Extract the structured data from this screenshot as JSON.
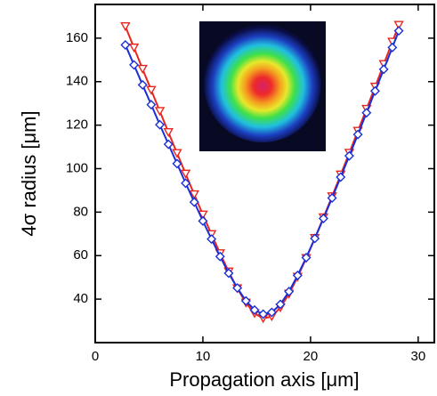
{
  "chart_data": {
    "type": "scatter",
    "x_label": "Propagation axis  [μm]",
    "y_label": "4σ radius  [μm]",
    "xlim": [
      0,
      31.5
    ],
    "ylim": [
      20,
      175.5
    ],
    "xticks": [
      0,
      10,
      20,
      30
    ],
    "yticks": [
      40,
      60,
      80,
      100,
      120,
      140,
      160
    ],
    "x": [
      2.8,
      3.6,
      4.4,
      5.2,
      6.0,
      6.8,
      7.6,
      8.4,
      9.2,
      10.0,
      10.8,
      11.6,
      12.4,
      13.2,
      14.0,
      14.8,
      15.6,
      16.4,
      17.2,
      18.0,
      18.8,
      19.6,
      20.4,
      21.2,
      22.0,
      22.8,
      23.6,
      24.4,
      25.2,
      26.0,
      26.8,
      27.6,
      28.2
    ],
    "series": [
      {
        "color": "#e8261f",
        "marker": "triangle-down",
        "values": [
          165.4,
          155.6,
          145.8,
          136.1,
          126.4,
          116.7,
          107.1,
          97.6,
          88.1,
          78.8,
          69.8,
          61.0,
          52.6,
          44.9,
          38.3,
          33.4,
          31.1,
          32.0,
          36.1,
          42.4,
          50.2,
          58.8,
          68.0,
          77.5,
          87.2,
          97.2,
          107.2,
          117.3,
          127.4,
          137.6,
          148.0,
          158.3,
          166.0
        ]
      },
      {
        "color": "#1a2fd6",
        "marker": "diamond",
        "values": [
          156.9,
          147.7,
          138.5,
          129.4,
          120.2,
          111.2,
          102.3,
          93.3,
          84.6,
          75.9,
          67.6,
          59.6,
          51.9,
          45.1,
          39.2,
          35.0,
          33.1,
          33.9,
          37.6,
          43.5,
          50.9,
          59.1,
          67.9,
          77.1,
          86.5,
          96.1,
          105.9,
          115.7,
          125.7,
          135.7,
          145.7,
          155.7,
          163.4
        ]
      }
    ]
  }
}
